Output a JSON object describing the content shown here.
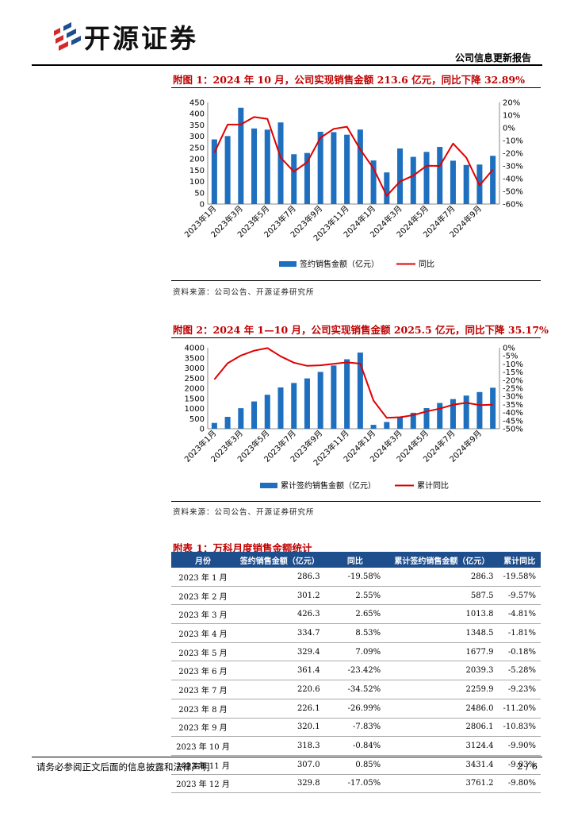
{
  "header": {
    "brand": "开源证券",
    "doc_type": "公司信息更新报告"
  },
  "figure1": {
    "title": "附图 1：2024 年 10 月，公司实现销售金额 213.6 亿元，同比下降 32.89%",
    "source": "资料来源：公司公告、开源证券研究所"
  },
  "figure2": {
    "title": "附图 2：2024 年 1—10 月，公司实现销售金额 2025.5 亿元，同比下降 35.17%",
    "source": "资料来源：公司公告、开源证券研究所"
  },
  "chart_data": [
    {
      "type": "bar+line",
      "categories": [
        "2023年1月",
        "2023年2月",
        "2023年3月",
        "2023年4月",
        "2023年5月",
        "2023年6月",
        "2023年7月",
        "2023年8月",
        "2023年9月",
        "2023年10月",
        "2023年11月",
        "2023年12月",
        "2024年1月",
        "2024年2月",
        "2024年3月",
        "2024年4月",
        "2024年5月",
        "2024年6月",
        "2024年7月",
        "2024年8月",
        "2024年9月",
        "2024年10月"
      ],
      "tick_labels": [
        "2023年1月",
        "2023年3月",
        "2023年5月",
        "2023年7月",
        "2023年9月",
        "2023年11月",
        "2024年1月",
        "2024年3月",
        "2024年5月",
        "2024年7月",
        "2024年9月"
      ],
      "series": [
        {
          "name": "签约销售金额（亿元）",
          "axis": "left",
          "kind": "bar",
          "color": "#1f6fbf",
          "values": [
            286.3,
            301.2,
            426.3,
            334.7,
            329.4,
            361.4,
            220.6,
            226.1,
            320.1,
            318.3,
            307.0,
            329.8,
            193.0,
            140.0,
            246.0,
            209.0,
            231.0,
            253.0,
            192.0,
            173.0,
            175.0,
            213.6
          ]
        },
        {
          "name": "同比",
          "axis": "right",
          "kind": "line",
          "color": "#e00000",
          "values": [
            -19.58,
            2.55,
            2.65,
            8.53,
            7.09,
            -23.42,
            -34.52,
            -26.99,
            -7.83,
            -0.84,
            0.85,
            -17.05,
            -32.0,
            -53.5,
            -42.3,
            -37.6,
            -29.9,
            -30.0,
            -12.4,
            -23.5,
            -45.3,
            -32.89
          ]
        }
      ],
      "left_axis": {
        "range": [
          0,
          450
        ],
        "ticks": [
          "0",
          "50",
          "100",
          "150",
          "200",
          "250",
          "300",
          "350",
          "400",
          "450"
        ]
      },
      "right_axis": {
        "range": [
          -60,
          20
        ],
        "ticks": [
          "-60%",
          "-50%",
          "-40%",
          "-30%",
          "-20%",
          "-10%",
          "0%",
          "10%",
          "20%"
        ]
      }
    },
    {
      "type": "bar+line",
      "categories": [
        "2023年1月",
        "2023年2月",
        "2023年3月",
        "2023年4月",
        "2023年5月",
        "2023年6月",
        "2023年7月",
        "2023年8月",
        "2023年9月",
        "2023年10月",
        "2023年11月",
        "2023年12月",
        "2024年1月",
        "2024年2月",
        "2024年3月",
        "2024年4月",
        "2024年5月",
        "2024年6月",
        "2024年7月",
        "2024年8月",
        "2024年9月",
        "2024年10月"
      ],
      "tick_labels": [
        "2023年1月",
        "2023年3月",
        "2023年5月",
        "2023年7月",
        "2023年9月",
        "2023年11月",
        "2024年1月",
        "2024年3月",
        "2024年5月",
        "2024年7月",
        "2024年9月"
      ],
      "series": [
        {
          "name": "累计签约销售金额（亿元）",
          "axis": "left",
          "kind": "bar",
          "color": "#1f6fbf",
          "values": [
            286.3,
            587.5,
            1013.8,
            1348.5,
            1677.9,
            2039.3,
            2259.9,
            2486.0,
            2806.1,
            3124.4,
            3431.4,
            3761.2,
            193.0,
            333.0,
            579.0,
            788.0,
            1019.0,
            1272.0,
            1464.0,
            1637.0,
            1812.0,
            2025.5
          ]
        },
        {
          "name": "累计同比",
          "axis": "right",
          "kind": "line",
          "color": "#e00000",
          "values": [
            -19.58,
            -9.57,
            -4.81,
            -1.81,
            -0.18,
            -5.28,
            -9.23,
            -11.2,
            -10.83,
            -9.9,
            -9.03,
            -9.8,
            -32.6,
            -43.3,
            -42.9,
            -41.6,
            -39.3,
            -37.6,
            -35.2,
            -34.0,
            -35.4,
            -35.17
          ]
        }
      ],
      "left_axis": {
        "range": [
          0,
          4000
        ],
        "ticks": [
          "0",
          "500",
          "1000",
          "1500",
          "2000",
          "2500",
          "3000",
          "3500",
          "4000"
        ]
      },
      "right_axis": {
        "range": [
          -50,
          0
        ],
        "ticks": [
          "-50%",
          "-45%",
          "-40%",
          "-35%",
          "-30%",
          "-25%",
          "-20%",
          "-15%",
          "-10%",
          "-5%",
          "0%"
        ]
      }
    }
  ],
  "table": {
    "title": "附表 1：万科月度销售金额统计",
    "headers": [
      "月份",
      "签约销售金额（亿元）",
      "同比",
      "累计签约销售金额（亿元）",
      "累计同比"
    ],
    "rows": [
      [
        "2023 年 1 月",
        "286.3",
        "-19.58%",
        "286.3",
        "-19.58%"
      ],
      [
        "2023 年 2 月",
        "301.2",
        "2.55%",
        "587.5",
        "-9.57%"
      ],
      [
        "2023 年 3 月",
        "426.3",
        "2.65%",
        "1013.8",
        "-4.81%"
      ],
      [
        "2023 年 4 月",
        "334.7",
        "8.53%",
        "1348.5",
        "-1.81%"
      ],
      [
        "2023 年 5 月",
        "329.4",
        "7.09%",
        "1677.9",
        "-0.18%"
      ],
      [
        "2023 年 6 月",
        "361.4",
        "-23.42%",
        "2039.3",
        "-5.28%"
      ],
      [
        "2023 年 7 月",
        "220.6",
        "-34.52%",
        "2259.9",
        "-9.23%"
      ],
      [
        "2023 年 8 月",
        "226.1",
        "-26.99%",
        "2486.0",
        "-11.20%"
      ],
      [
        "2023 年 9 月",
        "320.1",
        "-7.83%",
        "2806.1",
        "-10.83%"
      ],
      [
        "2023 年 10 月",
        "318.3",
        "-0.84%",
        "3124.4",
        "-9.90%"
      ],
      [
        "2023 年 11 月",
        "307.0",
        "0.85%",
        "3431.4",
        "-9.03%"
      ],
      [
        "2023 年 12 月",
        "329.8",
        "-17.05%",
        "3761.2",
        "-9.80%"
      ]
    ]
  },
  "footer": {
    "disclaimer": "请务必参阅正文后面的信息披露和法律声明",
    "page": "2 / 6"
  }
}
